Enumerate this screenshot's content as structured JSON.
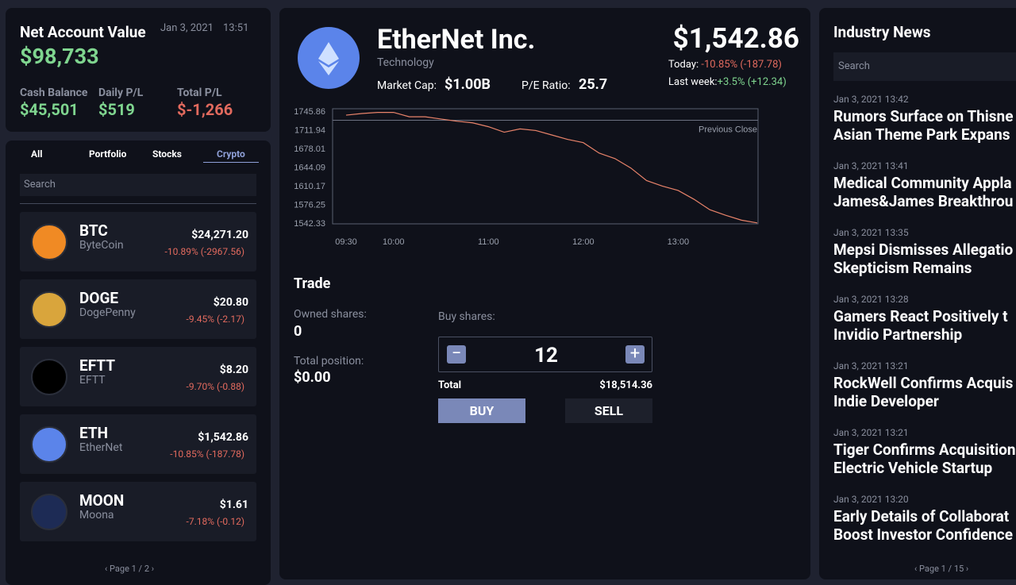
{
  "account": {
    "title": "Net Account Value",
    "date": "Jan 3, 2021",
    "time": "13:51",
    "value": "$98,733",
    "stats": [
      {
        "label": "Cash Balance",
        "value": "$45,501"
      },
      {
        "label": "Daily P/L",
        "value": "$519"
      },
      {
        "label": "Total P/L",
        "value": "$-1,266"
      }
    ]
  },
  "watchlist": {
    "tabs": [
      "All",
      "Portfolio",
      "Stocks",
      "Crypto"
    ],
    "search": "Search",
    "items": [
      {
        "symbol": "BTC",
        "name": "ByteCoin",
        "price": "$24,271.20",
        "change": "-10.89% (-2967.56)"
      },
      {
        "symbol": "DOGE",
        "name": "DogePenny",
        "price": "$20.80",
        "change": "-9.45% (-2.17)"
      },
      {
        "symbol": "EFTT",
        "name": "EFTT",
        "price": "$8.20",
        "change": "-9.70% (-0.88)"
      },
      {
        "symbol": "ETH",
        "name": "EtherNet",
        "price": "$1,542.86",
        "change": "-10.85% (-187.78)"
      },
      {
        "symbol": "MOON",
        "name": "Moona",
        "price": "$1.61",
        "change": "-7.18% (-0.12)"
      }
    ],
    "pager": "Page 1 / 2"
  },
  "stock": {
    "name": "EtherNet Inc.",
    "sector": "Technology",
    "market_cap_label": "Market Cap:",
    "market_cap": "$1.00B",
    "pe_label": "P/E Ratio:",
    "pe": "25.7",
    "price": "$1,542.86",
    "today_label": "Today:",
    "today": "-10.85% (-187.78)",
    "week_label": "Last week:",
    "week": "+3.5% (+12.34)"
  },
  "chart_data": {
    "type": "line",
    "annotation": "Previous Close",
    "previous_close": 1730.64,
    "x": [
      "09:30",
      "09:40",
      "09:50",
      "10:00",
      "10:10",
      "10:20",
      "10:30",
      "10:40",
      "10:50",
      "11:00",
      "11:10",
      "11:20",
      "11:30",
      "11:40",
      "11:50",
      "12:00",
      "12:10",
      "12:20",
      "12:30",
      "12:40",
      "12:50",
      "13:00",
      "13:10",
      "13:20",
      "13:30",
      "13:40",
      "13:50"
    ],
    "series": [
      {
        "name": "EtherNet Inc.",
        "color": "#e8836a",
        "values": [
          1740,
          1743,
          1745,
          1745,
          1737,
          1737,
          1733,
          1729,
          1726,
          1719,
          1709,
          1715,
          1712,
          1704,
          1696,
          1690,
          1671,
          1661,
          1644,
          1621,
          1611,
          1603,
          1587,
          1568,
          1558,
          1549,
          1544
        ]
      }
    ],
    "xlim": [
      "09:30",
      "13:50"
    ],
    "xticks": [
      "09:30",
      "10:00",
      "11:00",
      "12:00",
      "13:00"
    ],
    "ylim": [
      1542.33,
      1745.86
    ],
    "yticks": [
      1542.33,
      1576.25,
      1610.17,
      1644.09,
      1678.01,
      1711.94,
      1745.86
    ]
  },
  "trade": {
    "title": "Trade",
    "owned_label": "Owned shares:",
    "owned": "0",
    "position_label": "Total position:",
    "position": "$0.00",
    "buy_label": "Buy shares:",
    "quantity": "12",
    "total_label": "Total",
    "total": "$18,514.36",
    "buy": "BUY",
    "sell": "SELL"
  },
  "news": {
    "title": "Industry News",
    "search": "Search",
    "items": [
      {
        "time": "Jan 3, 2021 13:42",
        "headline": "Rumors Surface on Thisne Asian Theme Park Expans"
      },
      {
        "time": "Jan 3, 2021 13:41",
        "headline": "Medical Community Appla James&James Breakthrou"
      },
      {
        "time": "Jan 3, 2021 13:35",
        "headline": "Mepsi Dismisses Allegatio Skepticism Remains"
      },
      {
        "time": "Jan 3, 2021 13:28",
        "headline": "Gamers React Positively t Invidio Partnership"
      },
      {
        "time": "Jan 3, 2021 13:21",
        "headline": "RockWell Confirms Acquis Indie Developer"
      },
      {
        "time": "Jan 3, 2021 13:21",
        "headline": "Tiger Confirms Acquisition Electric Vehicle Startup"
      },
      {
        "time": "Jan 3, 2021 13:20",
        "headline": "Early Details of Collaborat Boost Investor Confidence"
      }
    ],
    "pager": "Page 1 / 15"
  }
}
